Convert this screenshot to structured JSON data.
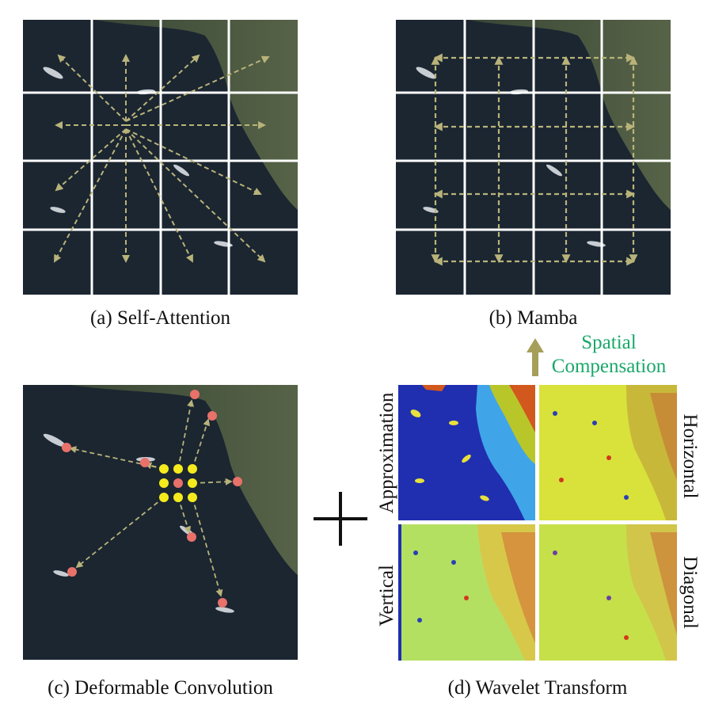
{
  "panels": {
    "a": {
      "caption": "(a) Self-Attention"
    },
    "b": {
      "caption": "(b) Mamba"
    },
    "c": {
      "caption": "(c) Deformable Convolution"
    },
    "d": {
      "caption": "(d) Wavelet Transform",
      "subbands": {
        "approximation": "Approximation",
        "horizontal": "Horizontal",
        "vertical": "Vertical",
        "diagonal": "Diagonal"
      }
    }
  },
  "spatial_compensation": {
    "line1": "Spatial",
    "line2": "Compensation"
  },
  "colors": {
    "arrow": "#b9b37a",
    "grid": "#ffffff",
    "sample_point": "#f4ea1c",
    "offset_point": "#e8716a",
    "label_green": "#1aa86a",
    "water": "#1b2631",
    "land": "#4a5a3e"
  }
}
